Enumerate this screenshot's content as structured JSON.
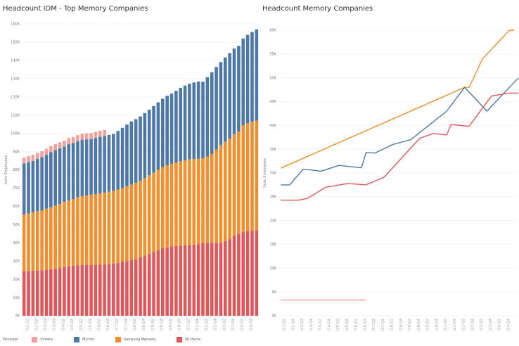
{
  "panels": {
    "left_title": "Headcount IDM - Top Memory Companies",
    "right_title": "Headcount Memory Companies"
  },
  "legend": {
    "title": "Principal",
    "items": [
      {
        "label": "Inotera",
        "color": "#f1a09b"
      },
      {
        "label": "Micron",
        "color": "#4e79a7"
      },
      {
        "label": "Samsung Memory",
        "color": "#f28e2b"
      },
      {
        "label": "SK Hynix",
        "color": "#e15759"
      }
    ]
  },
  "colors": {
    "inotera": "#f1a09b",
    "micron": "#4e79a7",
    "samsung": "#f28e2b",
    "skhynix": "#e15759",
    "grid": "#eeeeee",
    "axis_text": "#777777"
  },
  "chart_data": [
    {
      "type": "bar",
      "stacked": true,
      "title": "Headcount IDM - Top Memory Companies",
      "ylabel": "Semi Employees",
      "ylim": [
        0,
        160000
      ],
      "y_ticks": [
        "0K",
        "10K",
        "20K",
        "30K",
        "40K",
        "50K",
        "60K",
        "70K",
        "80K",
        "90K",
        "100K",
        "110K",
        "120K",
        "130K",
        "140K",
        "150K",
        "160K"
      ],
      "x_tick_labels": [
        "2012-Q2",
        "2012-Q4",
        "2013-Q2",
        "2013-Q4",
        "2014-Q2",
        "2014-Q4",
        "2015-Q2",
        "2015-Q4",
        "2016-Q2",
        "2016-Q4",
        "2017-Q2",
        "2017-Q4",
        "2018-Q2",
        "2018-Q4",
        "2019-Q2",
        "2019-Q4",
        "2020-Q2",
        "2020-Q4",
        "2021-Q2",
        "2021-Q4",
        "2022-Q2",
        "2022-Q4",
        "2023-Q2",
        "2023-Q4",
        "2024-Q2",
        "2024-Q4"
      ],
      "grid": true,
      "legend_position": "bottom",
      "series": [
        {
          "name": "SK Hynix",
          "values": [
            24500,
            24500,
            24700,
            24800,
            24900,
            25200,
            25500,
            25800,
            26200,
            26800,
            27200,
            27500,
            27700,
            27800,
            27900,
            28000,
            28000,
            28100,
            28200,
            28300,
            28500,
            29000,
            29500,
            30000,
            30500,
            31000,
            32000,
            33000,
            34000,
            35000,
            36000,
            37000,
            37500,
            38000,
            38200,
            38400,
            38600,
            38800,
            39000,
            39300,
            40000,
            40000,
            40000,
            40000,
            40000,
            41000,
            42000,
            44000,
            45000,
            46000,
            46500,
            46700,
            47000
          ]
        },
        {
          "name": "Samsung Memory",
          "values": [
            31000,
            31600,
            32000,
            32600,
            32800,
            33500,
            34000,
            34600,
            35100,
            35600,
            36000,
            36500,
            37300,
            37800,
            38000,
            38500,
            38700,
            39000,
            39300,
            39600,
            40000,
            40200,
            40500,
            41000,
            41500,
            41800,
            42000,
            42400,
            43000,
            43500,
            44000,
            44500,
            45000,
            45300,
            45800,
            46300,
            46600,
            46900,
            46900,
            46800,
            46300,
            47300,
            48700,
            51100,
            53500,
            54400,
            55000,
            55500,
            56000,
            58500,
            59000,
            59600,
            60000
          ]
        },
        {
          "name": "Micron",
          "values": [
            28000,
            28100,
            28200,
            28600,
            29200,
            29500,
            30200,
            30400,
            30500,
            30300,
            30900,
            30700,
            30700,
            30900,
            30800,
            30400,
            30800,
            31000,
            31000,
            31300,
            31200,
            32100,
            33000,
            33800,
            34500,
            35000,
            35300,
            35700,
            36000,
            36500,
            37000,
            37500,
            38100,
            38500,
            39300,
            40200,
            41000,
            41500,
            42000,
            42300,
            42000,
            43500,
            44800,
            45300,
            45600,
            46200,
            47000,
            47000,
            47000,
            47500,
            48500,
            49300,
            50000
          ]
        },
        {
          "name": "Inotera",
          "values": [
            3300,
            3300,
            3300,
            3300,
            3300,
            3300,
            3300,
            3300,
            3300,
            3300,
            3300,
            3300,
            3300,
            3300,
            3300,
            3300,
            3300,
            3300,
            3300,
            0,
            0,
            0,
            0,
            0,
            0,
            0,
            0,
            0,
            0,
            0,
            0,
            0,
            0,
            0,
            0,
            0,
            0,
            0,
            0,
            0,
            0,
            0,
            0,
            0,
            0,
            0,
            0,
            0,
            0,
            0,
            0,
            0,
            0
          ]
        }
      ]
    },
    {
      "type": "line",
      "title": "Headcount Memory Companies",
      "ylabel": "Semi Employees",
      "ylim": [
        0,
        60000
      ],
      "y_ticks": [
        "0K",
        "5K",
        "10K",
        "15K",
        "20K",
        "25K",
        "30K",
        "35K",
        "40K",
        "45K",
        "50K",
        "55K",
        "60K"
      ],
      "x_tick_labels": [
        "2012-Q2",
        "2012-Q4",
        "2013-Q2",
        "2013-Q4",
        "2014-Q2",
        "2014-Q4",
        "2015-Q2",
        "2015-Q4",
        "2016-Q2",
        "2016-Q4",
        "2017-Q2",
        "2017-Q4",
        "2018-Q2",
        "2018-Q4",
        "2019-Q2",
        "2019-Q4",
        "2020-Q2",
        "2020-Q4",
        "2021-Q2",
        "2021-Q4",
        "2022-Q2",
        "2022-Q4",
        "2023-Q2",
        "2023-Q4",
        "2024-Q2",
        "2024-Q4"
      ],
      "grid": true,
      "series": [
        {
          "name": "Samsung Memory",
          "points": [
            [
              "2012-Q1",
              31000
            ],
            [
              "2022-Q2",
              48000
            ],
            [
              "2022-Q3",
              48000
            ],
            [
              "2023-Q2",
              54000
            ],
            [
              "2024-Q4",
              60000
            ],
            [
              "2025-Q1",
              60000
            ]
          ]
        },
        {
          "name": "Micron",
          "points": [
            [
              "2012-Q1",
              27500
            ],
            [
              "2012-Q3",
              27500
            ],
            [
              "2013-Q2",
              30800
            ],
            [
              "2014-Q2",
              30400
            ],
            [
              "2015-Q2",
              31600
            ],
            [
              "2016-Q2",
              31200
            ],
            [
              "2016-Q3",
              31100
            ],
            [
              "2016-Q4",
              34300
            ],
            [
              "2017-Q2",
              34200
            ],
            [
              "2018-Q2",
              36000
            ],
            [
              "2019-Q2",
              37000
            ],
            [
              "2021-Q2",
              43000
            ],
            [
              "2022-Q2",
              48000
            ],
            [
              "2023-Q3",
              43000
            ],
            [
              "2024-Q4",
              48000
            ],
            [
              "2025-Q2",
              50000
            ]
          ]
        },
        {
          "name": "SK Hynix",
          "points": [
            [
              "2012-Q1",
              24300
            ],
            [
              "2013-Q1",
              24300
            ],
            [
              "2013-Q3",
              24700
            ],
            [
              "2014-Q3",
              27000
            ],
            [
              "2015-Q4",
              27800
            ],
            [
              "2016-Q4",
              27500
            ],
            [
              "2017-Q4",
              29100
            ],
            [
              "2019-Q4",
              37300
            ],
            [
              "2020-Q3",
              38300
            ],
            [
              "2021-Q2",
              38000
            ],
            [
              "2021-Q3",
              40200
            ],
            [
              "2022-Q3",
              39800
            ],
            [
              "2023-Q4",
              46200
            ],
            [
              "2024-Q4",
              46800
            ],
            [
              "2025-Q2",
              46800
            ]
          ]
        },
        {
          "name": "Inotera",
          "points": [
            [
              "2012-Q1",
              3300
            ],
            [
              "2016-Q4",
              3300
            ]
          ]
        }
      ]
    }
  ]
}
